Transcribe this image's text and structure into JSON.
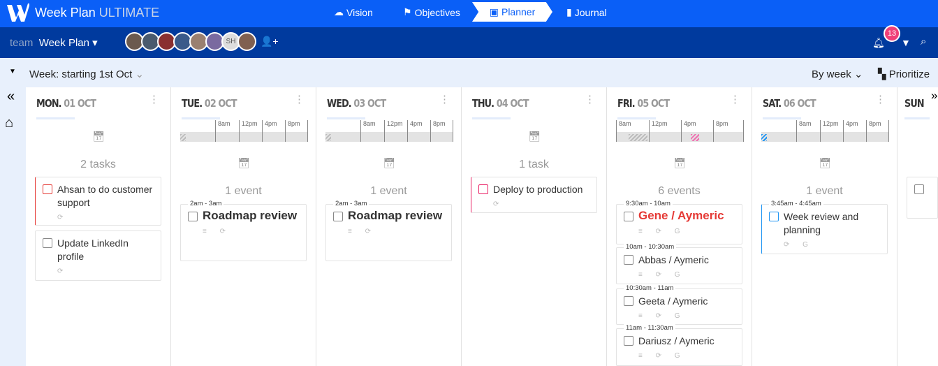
{
  "app": {
    "name": "Week Plan",
    "edition": "ULTIMATE"
  },
  "nav": [
    {
      "label": "Vision",
      "icon": "cloud-icon"
    },
    {
      "label": "Objectives",
      "icon": "flag-icon"
    },
    {
      "label": "Planner",
      "icon": "calendar-check-icon"
    },
    {
      "label": "Journal",
      "icon": "book-icon"
    }
  ],
  "team": {
    "prefix": "team",
    "name": "Week Plan",
    "members": [
      "",
      "",
      "",
      "",
      "",
      "",
      "SH",
      ""
    ],
    "notifications": "13"
  },
  "toolbar": {
    "week": "Week: starting 1st Oct",
    "view": "By week",
    "prioritize": "Prioritize"
  },
  "colors": {
    "top": "#0a5ff7",
    "bar": "#003a9e",
    "red": "#e53935",
    "blue": "#2196f3",
    "pink": "#e91e63"
  },
  "timeline_ticks": [
    "8am",
    "12pm",
    "4pm",
    "8pm"
  ],
  "days": [
    {
      "dow": "MON.",
      "date": "01 OCT",
      "count": "2 tasks",
      "items": [
        {
          "title": "Ahsan to do customer support",
          "icons": "⟳",
          "accent": "#e53935"
        },
        {
          "title": "Update LinkedIn profile",
          "icons": "⟳"
        }
      ]
    },
    {
      "dow": "TUE.",
      "date": "02 OCT",
      "count": "1 event",
      "items": [
        {
          "time": "2am - 3am",
          "title": "Roadmap review",
          "big": true,
          "icons": "≡ ⟳"
        }
      ]
    },
    {
      "dow": "WED.",
      "date": "03 OCT",
      "count": "1 event",
      "items": [
        {
          "time": "2am - 3am",
          "title": "Roadmap review",
          "big": true,
          "icons": "≡ ⟳"
        }
      ]
    },
    {
      "dow": "THU.",
      "date": "04 OCT",
      "count": "1 task",
      "items": [
        {
          "title": "Deploy to production",
          "icons": "⟳",
          "accent": "#e91e63"
        }
      ]
    },
    {
      "dow": "FRI.",
      "date": "05 OCT",
      "count": "6 events",
      "items": [
        {
          "time": "9:30am - 10am",
          "title": "Gene / Aymeric",
          "big": true,
          "red": true,
          "icons": "≡ ⟳ G"
        },
        {
          "time": "10am - 10:30am",
          "title": "Abbas / Aymeric",
          "icons": "≡ ⟳ G"
        },
        {
          "time": "10:30am - 11am",
          "title": "Geeta / Aymeric",
          "icons": "≡ ⟳ G"
        },
        {
          "time": "11am - 11:30am",
          "title": "Dariusz / Aymeric",
          "icons": "≡ ⟳ G"
        }
      ]
    },
    {
      "dow": "SAT.",
      "date": "06 OCT",
      "count": "1 event",
      "items": [
        {
          "time": "3:45am - 4:45am",
          "title": "Week review and planning",
          "icons": "⟳ G",
          "accent": "#2196f3"
        }
      ]
    },
    {
      "dow": "SUN",
      "date": "",
      "count": "",
      "items": [
        {
          "title": ""
        }
      ]
    }
  ]
}
